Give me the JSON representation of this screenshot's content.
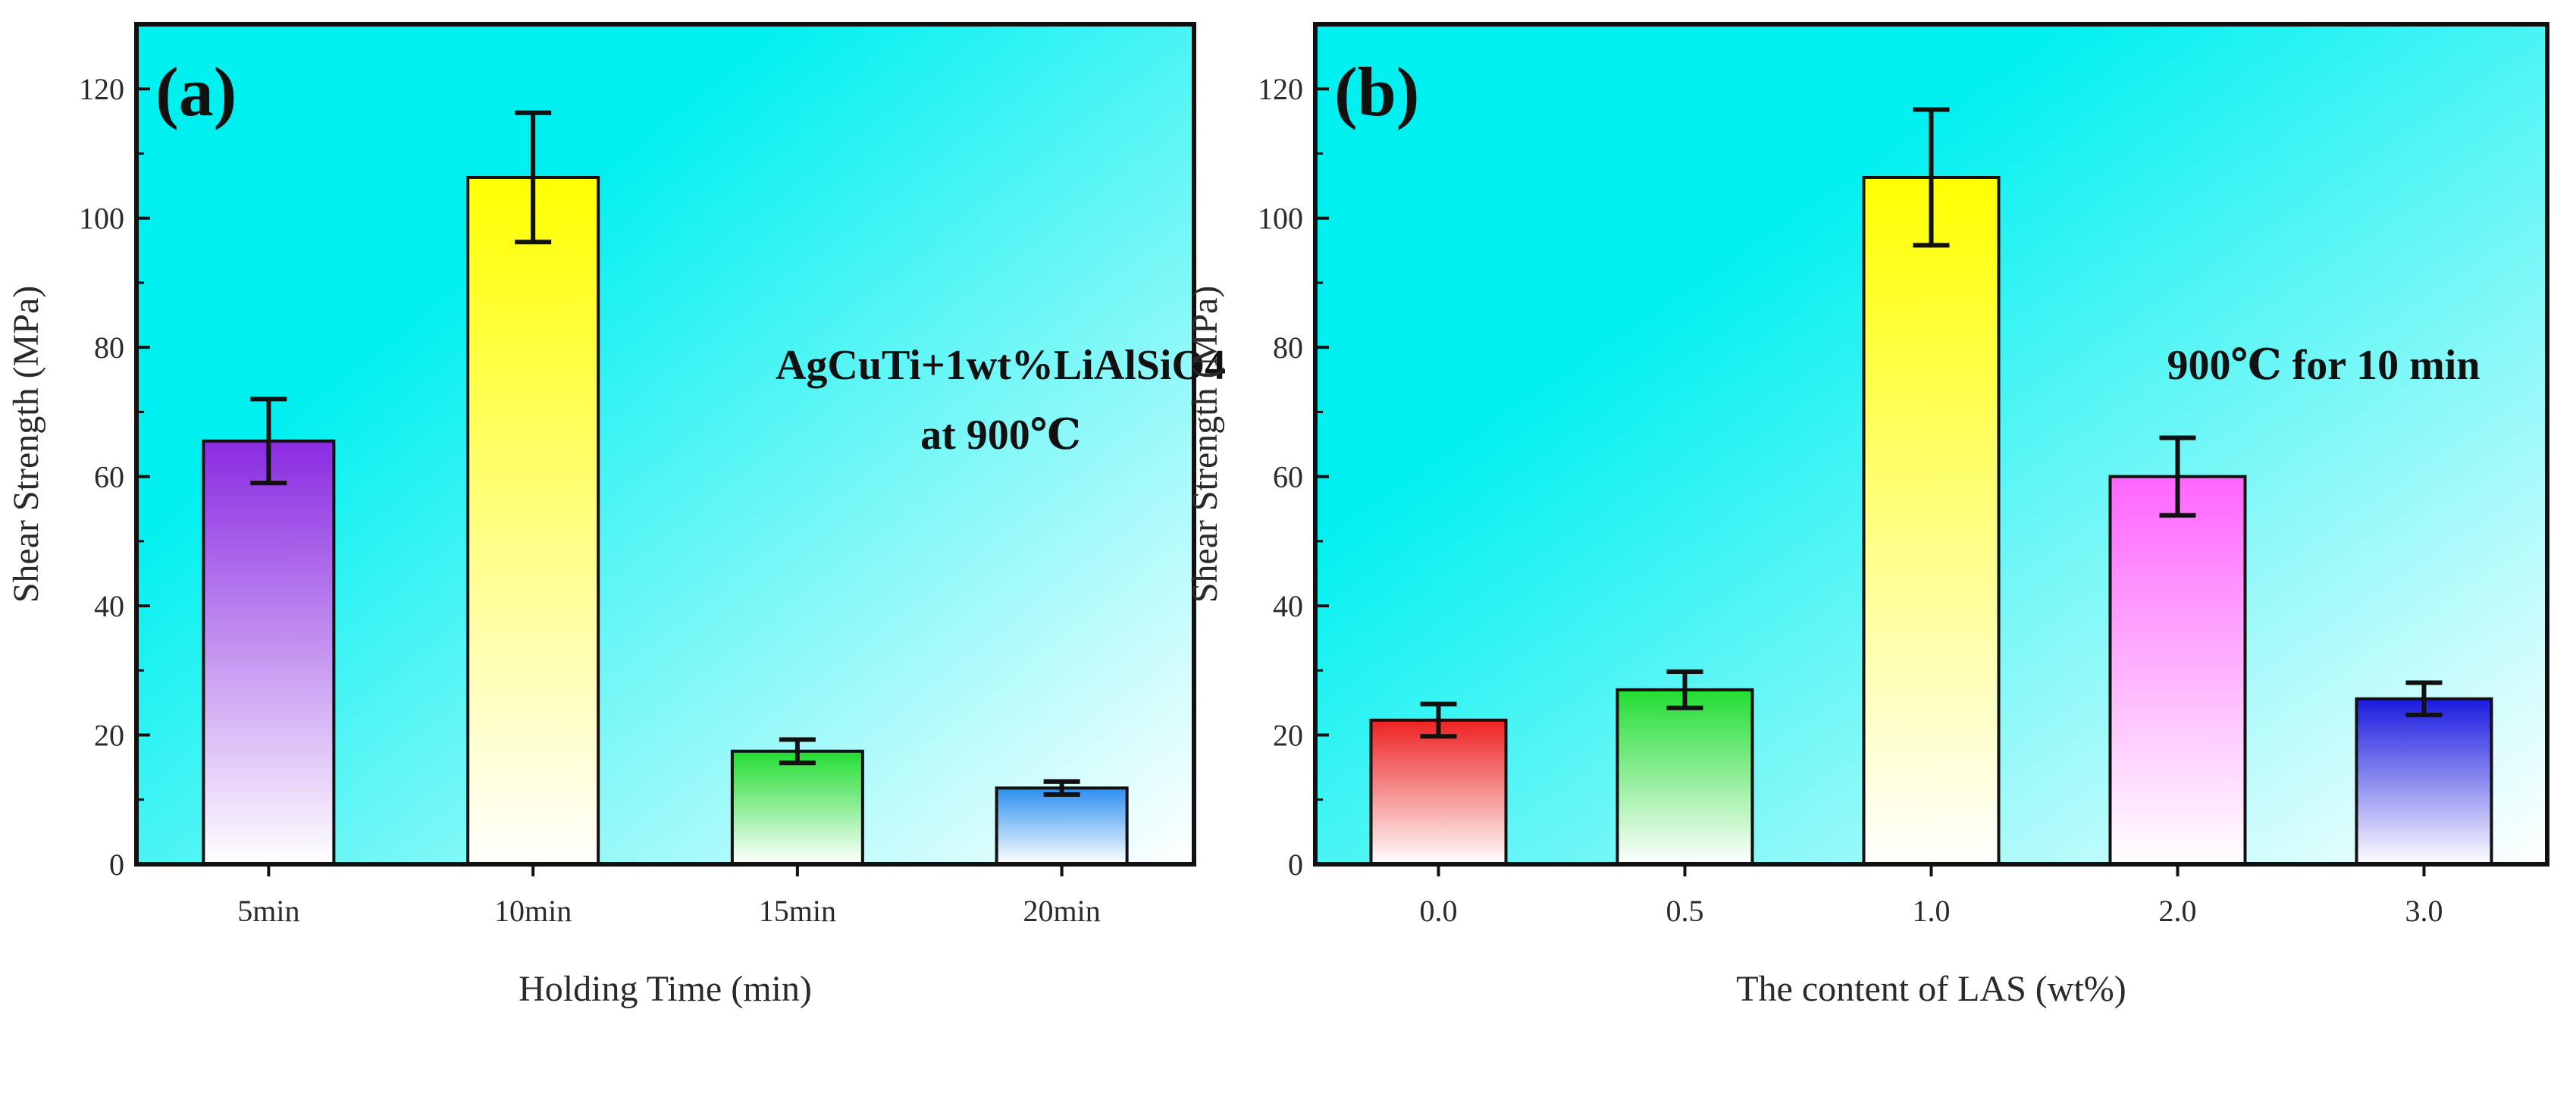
{
  "chart_data": [
    {
      "type": "bar",
      "panel_label": "(a)",
      "title": "",
      "annotation": [
        "AgCuTi+1wt%LiAlSiO4",
        "at 900℃"
      ],
      "xlabel": "Holding Time (min)",
      "ylabel": "Shear Strength (MPa)",
      "ylim": [
        0,
        130
      ],
      "yticks": [
        0,
        20,
        40,
        60,
        80,
        100,
        120
      ],
      "categories": [
        "5min",
        "10min",
        "15min",
        "20min"
      ],
      "values": [
        65.5,
        106.3,
        17.5,
        11.8
      ],
      "errors": [
        6.5,
        10.0,
        1.8,
        1.0
      ],
      "colors": [
        "#8a2be2",
        "#ffff00",
        "#22dd33",
        "#2c8ff0"
      ],
      "background": [
        "#00f0f0",
        "#ffffff"
      ]
    },
    {
      "type": "bar",
      "panel_label": "(b)",
      "title": "",
      "annotation": [
        "900℃ for 10 min"
      ],
      "xlabel": "The content of LAS (wt%)",
      "ylabel": "Shear Strength (MPa)",
      "ylim": [
        0,
        130
      ],
      "yticks": [
        0,
        20,
        40,
        60,
        80,
        100,
        120
      ],
      "categories": [
        "0.0",
        "0.5",
        "1.0",
        "2.0",
        "3.0"
      ],
      "values": [
        22.3,
        27.0,
        106.3,
        60.0,
        25.6
      ],
      "errors": [
        2.5,
        2.8,
        10.5,
        6.0,
        2.5
      ],
      "colors": [
        "#ee2222",
        "#22dd33",
        "#ffff00",
        "#ff66ff",
        "#1a1ae0"
      ],
      "background": [
        "#00f0f0",
        "#ffffff"
      ]
    }
  ]
}
